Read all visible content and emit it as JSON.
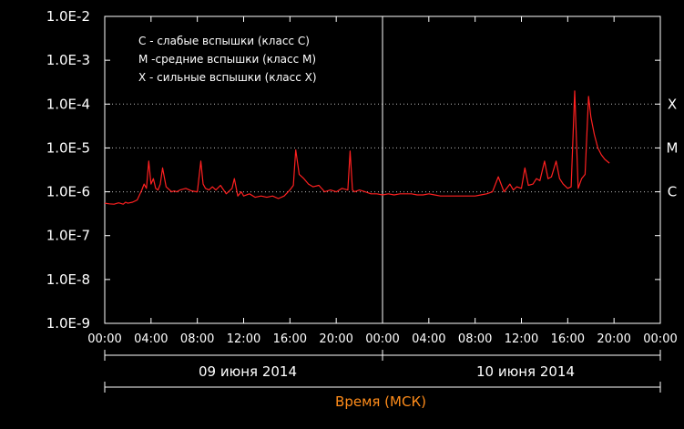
{
  "chart_data": {
    "type": "line",
    "y_scale": "log",
    "ylim": [
      1e-09,
      0.01
    ],
    "y_ticks": [
      "1.0E-9",
      "1.0E-8",
      "1.0E-7",
      "1.0E-6",
      "1.0E-5",
      "1.0E-4",
      "1.0E-3",
      "1.0E-2"
    ],
    "x_ticks": [
      "00:00",
      "04:00",
      "08:00",
      "12:00",
      "16:00",
      "20:00",
      "00:00",
      "04:00",
      "08:00",
      "12:00",
      "16:00",
      "20:00",
      "00:00"
    ],
    "xlim": [
      0,
      48
    ],
    "days": [
      "09 июня 2014",
      "10 июня 2014"
    ],
    "xlabel": "Время (МСК)",
    "legend": [
      "C - слабые вспышки (класс C)",
      "M -средние вспышки (класс M)",
      "X - сильные вспышки (класс X)"
    ],
    "legend_position": "top-left",
    "class_levels": [
      {
        "label": "C",
        "value": 1e-06
      },
      {
        "label": "M",
        "value": 1e-05
      },
      {
        "label": "X",
        "value": 0.0001
      }
    ],
    "grid": "dotted horizontal lines at class levels",
    "series_color": "#ff2020",
    "series": [
      {
        "x": [
          0,
          0.4,
          0.8,
          1.2,
          1.6,
          1.8,
          2.0,
          2.4,
          2.8,
          3.2,
          3.4,
          3.6,
          3.8,
          4.0,
          4.2,
          4.4,
          4.6,
          4.8,
          5.0,
          5.3,
          5.6,
          5.8,
          6.0,
          6.2,
          6.5,
          7.0,
          7.5,
          8.0,
          8.3,
          8.5,
          8.7,
          9.0,
          9.3,
          9.6,
          10,
          10.5,
          11,
          11.2,
          11.5,
          11.8,
          12,
          12.5,
          13,
          13.5,
          14,
          14.5,
          15,
          15.5,
          16,
          16.3,
          16.5,
          16.8,
          17.2,
          17.6,
          18,
          18.5,
          19,
          19.5,
          20,
          20.5,
          21,
          21.2,
          21.4,
          21.6,
          22,
          22.5,
          23,
          23.5,
          24,
          24.5,
          25,
          25.5,
          26,
          26.5,
          27,
          27.5,
          28,
          28.5,
          29,
          29.5,
          30,
          30.5,
          31,
          31.5,
          32,
          32.5,
          33,
          33.5,
          34,
          34.5,
          35,
          35.3,
          35.6,
          36,
          36.3,
          36.6,
          37,
          37.3,
          37.6,
          38,
          38.3,
          38.6,
          39,
          39.3,
          39.6,
          40,
          40.3,
          40.6,
          40.9,
          41.2,
          41.5,
          41.8,
          42,
          42.3,
          42.6,
          42.9,
          43.2,
          43.6
        ],
        "y": [
          5.5e-07,
          5.3e-07,
          5.2e-07,
          5.6e-07,
          5.2e-07,
          5.8e-07,
          5.5e-07,
          5.8e-07,
          6.5e-07,
          1.1e-06,
          1.5e-06,
          1.2e-06,
          5e-06,
          1.5e-06,
          2e-06,
          1.2e-06,
          1.1e-06,
          1.5e-06,
          3.5e-06,
          1.3e-06,
          1.1e-06,
          1e-06,
          1.05e-06,
          1e-06,
          1.1e-06,
          1.2e-06,
          1.05e-06,
          1e-06,
          5e-06,
          1.5e-06,
          1.2e-06,
          1.1e-06,
          1.3e-06,
          1.1e-06,
          1.4e-06,
          9e-07,
          1.2e-06,
          2e-06,
          8e-07,
          1e-06,
          8e-07,
          9e-07,
          7.5e-07,
          8e-07,
          7.5e-07,
          8e-07,
          7e-07,
          8e-07,
          1.1e-06,
          1.4e-06,
          9e-06,
          2.5e-06,
          2e-06,
          1.5e-06,
          1.3e-06,
          1.4e-06,
          1e-06,
          1.1e-06,
          1e-06,
          1.2e-06,
          1.1e-06,
          8.5e-06,
          1.1e-06,
          1e-06,
          1.1e-06,
          1e-06,
          9e-07,
          9e-07,
          8.5e-07,
          9e-07,
          8.5e-07,
          9e-07,
          9e-07,
          9e-07,
          8.5e-07,
          8.5e-07,
          9e-07,
          8.5e-07,
          8e-07,
          8e-07,
          8e-07,
          8e-07,
          8e-07,
          8e-07,
          8e-07,
          8.5e-07,
          9e-07,
          1e-06,
          2.2e-06,
          1e-06,
          1.5e-06,
          1.1e-06,
          1.3e-06,
          1.2e-06,
          3.5e-06,
          1.4e-06,
          1.5e-06,
          2e-06,
          1.8e-06,
          5e-06,
          2e-06,
          2.2e-06,
          5e-06,
          2e-06,
          1.5e-06,
          1.2e-06,
          1.3e-06,
          0.0002,
          1.2e-06,
          2e-06,
          2.5e-06,
          0.00015,
          5e-05,
          2e-05,
          1e-05,
          7e-06,
          5.5e-06,
          4.5e-06
        ]
      }
    ]
  }
}
